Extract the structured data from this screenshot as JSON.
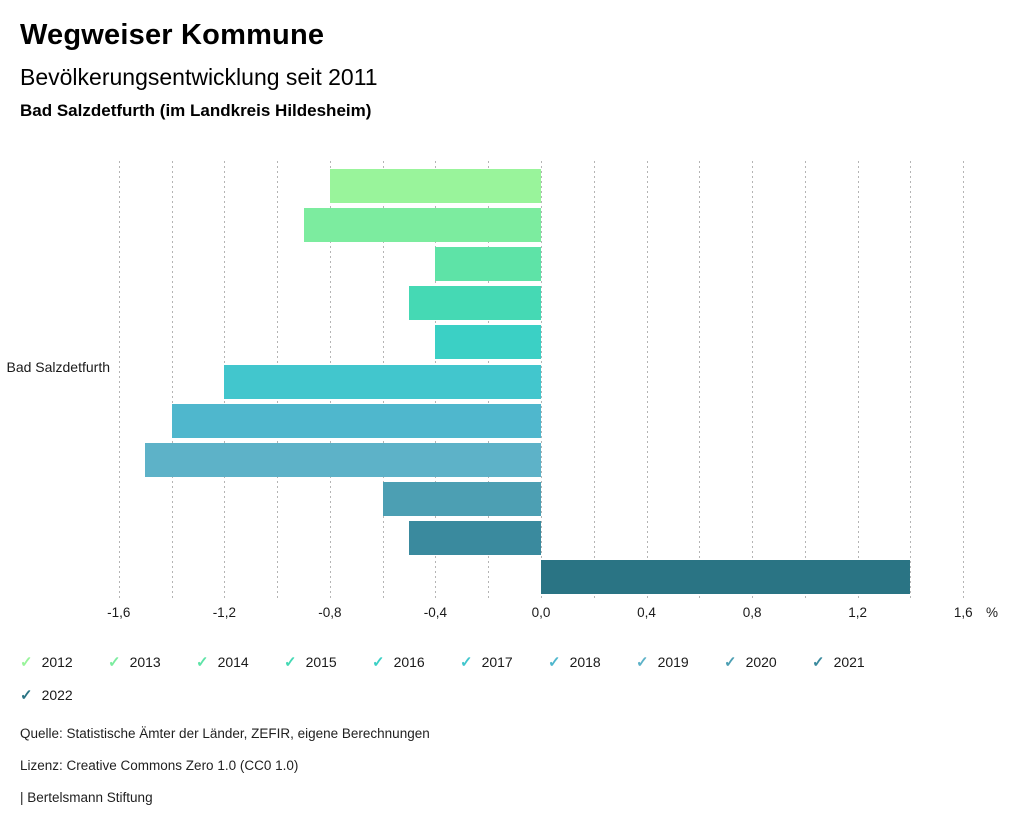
{
  "header": {
    "title": "Wegweiser Kommune",
    "subtitle": "Bevölkerungsentwicklung seit 2011",
    "region": "Bad Salzdetfurth (im Landkreis Hildesheim)"
  },
  "chart_data": {
    "type": "bar",
    "orientation": "horizontal",
    "title": "Bevölkerungsentwicklung seit 2011",
    "category_label": "Bad Salzdetfurth",
    "unit": "%",
    "xlim": [
      -1.8,
      1.8
    ],
    "grid": "on",
    "gridlines": [
      -1.6,
      -1.4,
      -1.2,
      -1.0,
      -0.8,
      -0.6,
      -0.4,
      -0.2,
      0.0,
      0.2,
      0.4,
      0.6,
      0.8,
      1.0,
      1.2,
      1.4,
      1.6
    ],
    "tick_labels": [
      {
        "value": -1.6,
        "label": "-1,6"
      },
      {
        "value": -1.2,
        "label": "-1,2"
      },
      {
        "value": -0.8,
        "label": "-0,8"
      },
      {
        "value": -0.4,
        "label": "-0,4"
      },
      {
        "value": 0.0,
        "label": "0,0"
      },
      {
        "value": 0.4,
        "label": "0,4"
      },
      {
        "value": 0.8,
        "label": "0,8"
      },
      {
        "value": 1.2,
        "label": "1,2"
      },
      {
        "value": 1.6,
        "label": "1,6"
      }
    ],
    "series": [
      {
        "name": "2012",
        "value": -0.8,
        "color": "#99f49b"
      },
      {
        "name": "2013",
        "value": -0.9,
        "color": "#7cec9f"
      },
      {
        "name": "2014",
        "value": -0.4,
        "color": "#5ee3a7"
      },
      {
        "name": "2015",
        "value": -0.5,
        "color": "#45d9b4"
      },
      {
        "name": "2016",
        "value": -0.4,
        "color": "#3bd0c5"
      },
      {
        "name": "2017",
        "value": -1.2,
        "color": "#42c6cd"
      },
      {
        "name": "2018",
        "value": -1.4,
        "color": "#4fb7cd"
      },
      {
        "name": "2019",
        "value": -1.5,
        "color": "#5db2c8"
      },
      {
        "name": "2020",
        "value": -0.6,
        "color": "#4c9fb3"
      },
      {
        "name": "2021",
        "value": -0.5,
        "color": "#3a8a9e"
      },
      {
        "name": "2022",
        "value": 1.4,
        "color": "#2a7484"
      }
    ],
    "legend_position": "bottom",
    "legend_check_glyph": "✓"
  },
  "footer": {
    "source": "Quelle: Statistische Ämter der Länder, ZEFIR, eigene Berechnungen",
    "license": "Lizenz: Creative Commons Zero 1.0 (CC0 1.0)",
    "attribution": "| Bertelsmann Stiftung"
  }
}
